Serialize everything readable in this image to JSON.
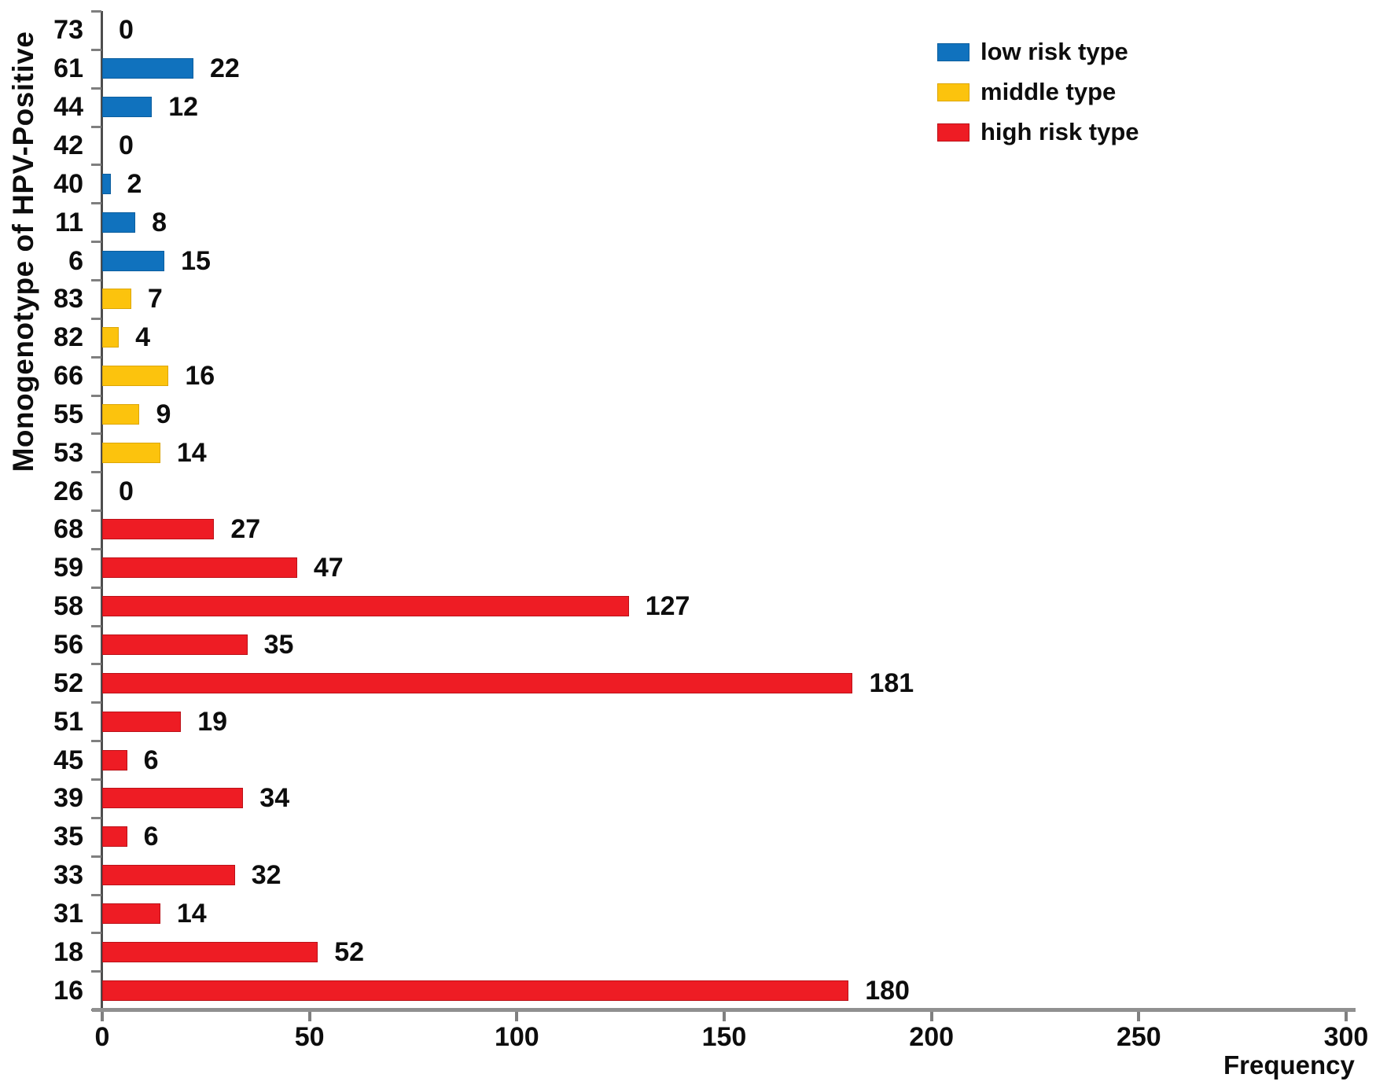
{
  "chart_data": {
    "type": "bar",
    "orientation": "horizontal",
    "title": "",
    "xlabel": "Frequency",
    "ylabel": "Monogenotype of HPV-Positive",
    "xlim": [
      0,
      300
    ],
    "xticks": [
      0,
      50,
      100,
      150,
      200,
      250,
      300
    ],
    "grid": false,
    "legend_position": "top-right",
    "categories": [
      "73",
      "61",
      "44",
      "42",
      "40",
      "11",
      "6",
      "83",
      "82",
      "66",
      "55",
      "53",
      "26",
      "68",
      "59",
      "58",
      "56",
      "52",
      "51",
      "45",
      "39",
      "35",
      "33",
      "31",
      "18",
      "16"
    ],
    "values": [
      0,
      22,
      12,
      0,
      2,
      8,
      15,
      7,
      4,
      16,
      9,
      14,
      0,
      27,
      47,
      127,
      35,
      181,
      19,
      6,
      34,
      6,
      32,
      14,
      52,
      180
    ],
    "groups": [
      "low",
      "low",
      "low",
      "low",
      "low",
      "low",
      "low",
      "middle",
      "middle",
      "middle",
      "middle",
      "middle",
      "middle",
      "high",
      "high",
      "high",
      "high",
      "high",
      "high",
      "high",
      "high",
      "high",
      "high",
      "high",
      "high",
      "high"
    ],
    "legend": [
      {
        "key": "low",
        "label": "low risk type",
        "color": "#1072be"
      },
      {
        "key": "middle",
        "label": "middle type",
        "color": "#fcc30d"
      },
      {
        "key": "high",
        "label": "high risk type",
        "color": "#ee1c24"
      }
    ],
    "colors": {
      "low": "#1072be",
      "middle": "#fcc30d",
      "high": "#ee1c24"
    },
    "axis_colors": {
      "y_axis": "#4d4d4d",
      "x_axis": "#909090",
      "ticks": "#7f7f7f"
    }
  }
}
